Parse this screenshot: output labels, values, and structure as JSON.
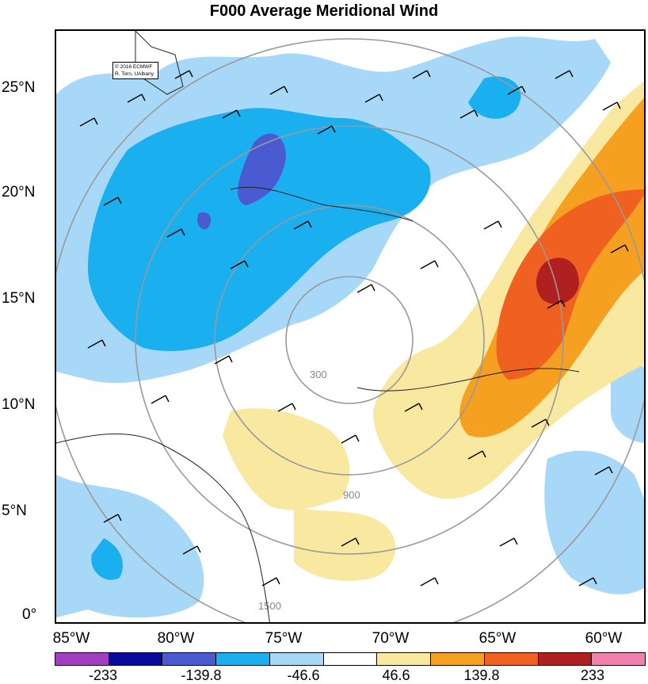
{
  "title": "F000 Average Meridional Wind",
  "credit": {
    "line1": "© 2016 ECMWF",
    "line2": "R. Torn, UAlbany"
  },
  "lat_labels": [
    "25°N",
    "20°N",
    "15°N",
    "10°N",
    "5°N",
    "0°"
  ],
  "lon_labels": [
    "85°W",
    "80°W",
    "75°W",
    "70°W",
    "65°W",
    "60°W"
  ],
  "colorbar": {
    "labels": [
      "-233",
      "-139.8",
      "-46.6",
      "46.6",
      "139.8",
      "233"
    ],
    "colors": [
      "#a040c0",
      "#0a0a9a",
      "#4a5ad0",
      "#1ab0f0",
      "#a8d8f8",
      "#ffffff",
      "#f8e8a0",
      "#f5a020",
      "#f06020",
      "#b02020",
      "#f080b0"
    ]
  },
  "contours": [
    "1500",
    "900",
    "300"
  ],
  "legend_colors": {
    "strong_neg": "#4a5ad0",
    "neg": "#1ab0f0",
    "weak_neg": "#a8d8f8",
    "weak_pos": "#f8e8a0",
    "pos": "#f5a020",
    "strong_pos": "#f06020",
    "max_pos": "#b02020"
  }
}
